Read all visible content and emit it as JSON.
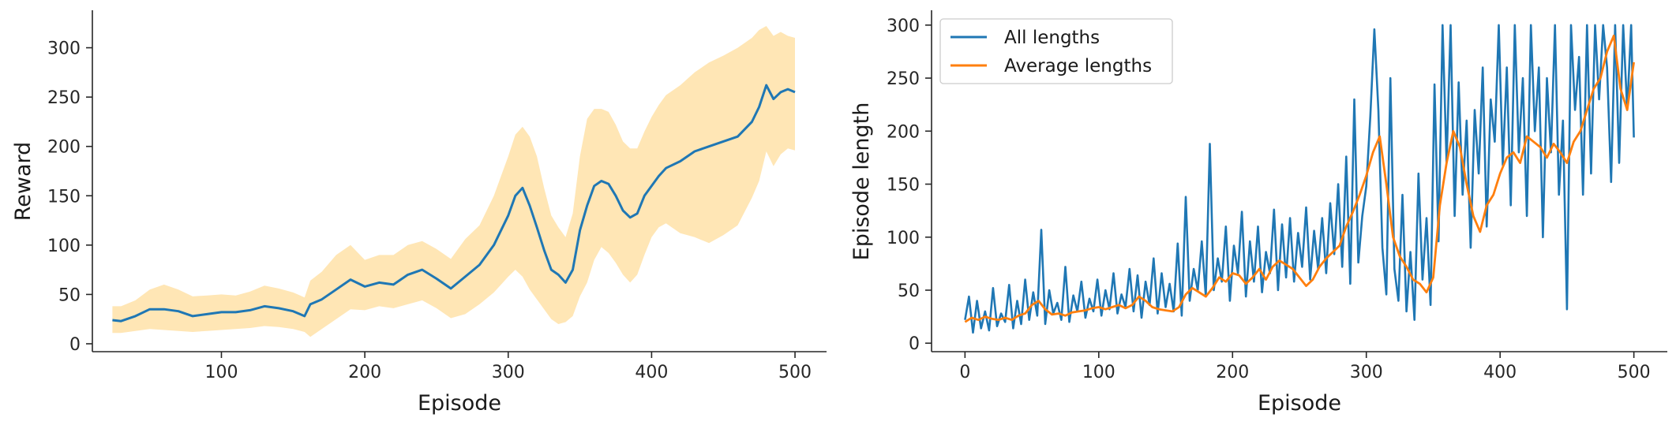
{
  "colors": {
    "reward_line": "#1f77b4",
    "reward_band": "#ffe6b5",
    "all_lengths": "#1f77b4",
    "average_lengths": "#ff7f0e",
    "axis": "#262626"
  },
  "chart_data": [
    {
      "type": "line",
      "xlabel": "Episode",
      "ylabel": "Reward",
      "xlim": [
        10,
        522
      ],
      "ylim": [
        -8,
        338
      ],
      "xticks": [
        100,
        200,
        300,
        400,
        500
      ],
      "yticks": [
        0,
        50,
        100,
        150,
        200,
        250,
        300
      ],
      "grid": false,
      "legend": false,
      "series": [
        {
          "x": [
            24,
            30,
            40,
            50,
            60,
            70,
            80,
            90,
            100,
            110,
            120,
            130,
            140,
            150,
            158,
            162,
            170,
            180,
            190,
            200,
            210,
            220,
            230,
            240,
            250,
            260,
            270,
            280,
            290,
            300,
            305,
            310,
            315,
            320,
            325,
            330,
            335,
            340,
            345,
            350,
            355,
            360,
            365,
            370,
            375,
            380,
            385,
            390,
            395,
            400,
            405,
            410,
            420,
            430,
            440,
            450,
            460,
            470,
            475,
            480,
            485,
            490,
            495,
            500
          ],
          "values": [
            24,
            23,
            28,
            35,
            35,
            33,
            28,
            30,
            32,
            32,
            34,
            38,
            36,
            33,
            28,
            40,
            45,
            55,
            65,
            58,
            62,
            60,
            70,
            75,
            66,
            56,
            68,
            80,
            100,
            130,
            150,
            158,
            140,
            118,
            95,
            75,
            70,
            62,
            75,
            115,
            140,
            160,
            165,
            162,
            150,
            135,
            128,
            132,
            150,
            160,
            170,
            178,
            185,
            195,
            200,
            205,
            210,
            225,
            240,
            262,
            248,
            255,
            258,
            255
          ],
          "lower": [
            11,
            11,
            13,
            15,
            14,
            13,
            12,
            13,
            14,
            15,
            16,
            18,
            17,
            15,
            12,
            7,
            15,
            25,
            35,
            34,
            38,
            36,
            40,
            44,
            36,
            26,
            30,
            40,
            52,
            68,
            75,
            68,
            55,
            45,
            35,
            25,
            20,
            22,
            28,
            48,
            62,
            85,
            98,
            92,
            82,
            70,
            62,
            70,
            90,
            108,
            118,
            122,
            112,
            108,
            102,
            110,
            120,
            148,
            165,
            195,
            180,
            192,
            198,
            196
          ],
          "upper": [
            38,
            38,
            44,
            55,
            60,
            55,
            48,
            49,
            50,
            49,
            53,
            59,
            56,
            52,
            47,
            64,
            73,
            90,
            100,
            85,
            90,
            90,
            100,
            104,
            96,
            86,
            106,
            120,
            150,
            190,
            212,
            220,
            210,
            190,
            158,
            130,
            118,
            108,
            132,
            190,
            228,
            238,
            238,
            235,
            222,
            205,
            198,
            198,
            215,
            230,
            242,
            252,
            262,
            275,
            285,
            292,
            300,
            310,
            318,
            322,
            312,
            316,
            312,
            310
          ]
        }
      ]
    },
    {
      "type": "line",
      "xlabel": "Episode",
      "ylabel": "Episode length",
      "xlim": [
        -25,
        525
      ],
      "ylim": [
        -8,
        314
      ],
      "xticks": [
        0,
        100,
        200,
        300,
        400,
        500
      ],
      "yticks": [
        0,
        50,
        100,
        150,
        200,
        250,
        300
      ],
      "grid": false,
      "legend": "top-left",
      "series": [
        {
          "name": "All lengths",
          "x": [
            0,
            3,
            6,
            9,
            12,
            15,
            18,
            21,
            24,
            27,
            30,
            33,
            36,
            39,
            42,
            45,
            48,
            51,
            54,
            57,
            60,
            63,
            66,
            69,
            72,
            75,
            78,
            81,
            84,
            87,
            90,
            93,
            96,
            99,
            102,
            105,
            108,
            111,
            114,
            117,
            120,
            123,
            126,
            129,
            132,
            135,
            138,
            141,
            144,
            147,
            150,
            153,
            156,
            159,
            162,
            165,
            168,
            171,
            174,
            177,
            180,
            183,
            186,
            189,
            192,
            195,
            198,
            201,
            204,
            207,
            210,
            213,
            216,
            219,
            222,
            225,
            228,
            231,
            234,
            237,
            240,
            243,
            246,
            249,
            252,
            255,
            258,
            261,
            264,
            267,
            270,
            273,
            276,
            279,
            282,
            285,
            288,
            291,
            294,
            297,
            300,
            303,
            306,
            309,
            312,
            315,
            318,
            321,
            324,
            327,
            330,
            333,
            336,
            339,
            342,
            345,
            348,
            351,
            354,
            357,
            360,
            363,
            366,
            369,
            372,
            375,
            378,
            381,
            384,
            387,
            390,
            393,
            396,
            399,
            402,
            405,
            408,
            411,
            414,
            417,
            420,
            423,
            426,
            429,
            432,
            435,
            438,
            441,
            444,
            447,
            450,
            453,
            456,
            459,
            462,
            465,
            468,
            471,
            474,
            477,
            480,
            483,
            486,
            489,
            492,
            495,
            498,
            500
          ],
          "values": [
            22,
            44,
            10,
            40,
            14,
            30,
            12,
            52,
            16,
            28,
            20,
            55,
            14,
            40,
            18,
            60,
            22,
            48,
            26,
            107,
            18,
            50,
            28,
            38,
            22,
            72,
            20,
            45,
            30,
            58,
            24,
            42,
            30,
            60,
            26,
            50,
            32,
            66,
            28,
            46,
            34,
            70,
            30,
            64,
            24,
            58,
            36,
            80,
            28,
            66,
            34,
            56,
            30,
            94,
            26,
            138,
            40,
            70,
            50,
            96,
            44,
            188,
            50,
            80,
            58,
            110,
            40,
            92,
            66,
            124,
            44,
            96,
            58,
            110,
            48,
            86,
            66,
            126,
            50,
            112,
            62,
            118,
            58,
            104,
            72,
            128,
            60,
            106,
            70,
            118,
            66,
            132,
            84,
            150,
            72,
            176,
            56,
            230,
            76,
            120,
            148,
            214,
            296,
            220,
            90,
            46,
            250,
            70,
            40,
            140,
            30,
            86,
            22,
            160,
            60,
            118,
            36,
            244,
            96,
            300,
            170,
            300,
            120,
            246,
            140,
            210,
            90,
            220,
            160,
            260,
            110,
            230,
            190,
            300,
            168,
            260,
            130,
            300,
            180,
            250,
            120,
            300,
            200,
            260,
            100,
            250,
            180,
            300,
            140,
            210,
            32,
            300,
            220,
            270,
            140,
            300,
            160,
            300,
            230,
            300,
            260,
            152,
            300,
            170,
            300,
            220,
            300,
            194
          ]
        },
        {
          "name": "Average lengths",
          "x": [
            0,
            5,
            10,
            15,
            20,
            25,
            30,
            35,
            40,
            45,
            50,
            55,
            60,
            65,
            70,
            75,
            80,
            85,
            90,
            95,
            100,
            105,
            110,
            115,
            120,
            125,
            130,
            135,
            140,
            145,
            150,
            155,
            160,
            165,
            170,
            175,
            180,
            185,
            190,
            195,
            200,
            205,
            210,
            215,
            220,
            225,
            230,
            235,
            240,
            245,
            250,
            255,
            260,
            265,
            270,
            275,
            280,
            285,
            290,
            295,
            300,
            305,
            310,
            315,
            320,
            325,
            330,
            335,
            340,
            345,
            350,
            355,
            360,
            365,
            370,
            375,
            380,
            385,
            390,
            395,
            400,
            405,
            410,
            415,
            420,
            425,
            430,
            435,
            440,
            445,
            450,
            455,
            460,
            465,
            470,
            475,
            480,
            485,
            490,
            495,
            500
          ],
          "values": [
            20,
            24,
            22,
            25,
            23,
            22,
            24,
            22,
            26,
            28,
            36,
            40,
            32,
            27,
            28,
            26,
            29,
            30,
            31,
            33,
            34,
            32,
            34,
            36,
            33,
            36,
            44,
            40,
            34,
            32,
            31,
            30,
            34,
            46,
            52,
            48,
            44,
            52,
            62,
            58,
            66,
            64,
            56,
            62,
            70,
            60,
            72,
            78,
            74,
            70,
            62,
            54,
            60,
            72,
            80,
            86,
            92,
            110,
            124,
            140,
            158,
            180,
            195,
            150,
            100,
            82,
            72,
            60,
            56,
            48,
            62,
            130,
            170,
            200,
            185,
            150,
            120,
            105,
            130,
            140,
            160,
            175,
            180,
            170,
            195,
            190,
            185,
            175,
            188,
            180,
            170,
            190,
            200,
            220,
            240,
            250,
            275,
            290,
            240,
            220,
            265
          ]
        }
      ]
    }
  ]
}
